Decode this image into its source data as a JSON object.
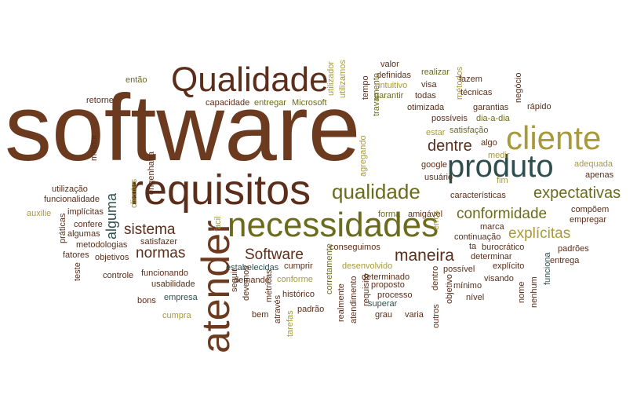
{
  "palette": {
    "brown": "#6b3a1f",
    "dark_brown": "#5a2e1a",
    "olive": "#6b6b1e",
    "khaki": "#a89a3a",
    "teal": "#2f4f4f",
    "green": "#4a5e2a"
  },
  "words": [
    {
      "text": "software",
      "color": "brown"
    },
    {
      "text": "Qualidade",
      "color": "dark_brown"
    },
    {
      "text": "requisitos",
      "color": "dark_brown"
    },
    {
      "text": "necessidades",
      "color": "olive"
    },
    {
      "text": "atender",
      "color": "brown"
    },
    {
      "text": "cliente",
      "color": "khaki"
    },
    {
      "text": "produto",
      "color": "teal"
    },
    {
      "text": "qualidade",
      "color": "olive"
    },
    {
      "text": "dentre",
      "color": "dark_brown"
    },
    {
      "text": "expectativas",
      "color": "olive"
    },
    {
      "text": "conformidade",
      "color": "olive"
    },
    {
      "text": "explícitas",
      "color": "khaki"
    },
    {
      "text": "sistema",
      "color": "dark_brown"
    },
    {
      "text": "normas",
      "color": "dark_brown"
    },
    {
      "text": "alguma",
      "color": "teal"
    },
    {
      "text": "Software",
      "color": "dark_brown"
    },
    {
      "text": "maneira",
      "color": "dark_brown"
    },
    {
      "text": "então",
      "color": "olive"
    },
    {
      "text": "retorne",
      "color": "dark_brown"
    },
    {
      "text": "capacidade",
      "color": "dark_brown"
    },
    {
      "text": "entregar",
      "color": "olive"
    },
    {
      "text": "Microsoft",
      "color": "olive"
    },
    {
      "text": "utilizamos",
      "color": "khaki"
    },
    {
      "text": "utilizador",
      "color": "khaki"
    },
    {
      "text": "tempo",
      "color": "dark_brown"
    },
    {
      "text": "valor",
      "color": "dark_brown"
    },
    {
      "text": "definidas",
      "color": "dark_brown"
    },
    {
      "text": "intuitivo",
      "color": "khaki"
    },
    {
      "text": "visa",
      "color": "dark_brown"
    },
    {
      "text": "realizar",
      "color": "olive"
    },
    {
      "text": "todas",
      "color": "dark_brown"
    },
    {
      "text": "métodos",
      "color": "khaki"
    },
    {
      "text": "fazem",
      "color": "dark_brown"
    },
    {
      "text": "técnicas",
      "color": "dark_brown"
    },
    {
      "text": "negócio",
      "color": "dark_brown"
    },
    {
      "text": "rápido",
      "color": "dark_brown"
    },
    {
      "text": "garantir",
      "color": "olive"
    },
    {
      "text": "travamento",
      "color": "olive"
    },
    {
      "text": "otimizada",
      "color": "dark_brown"
    },
    {
      "text": "garantias",
      "color": "dark_brown"
    },
    {
      "text": "possíveis",
      "color": "dark_brown"
    },
    {
      "text": "dia-a-dia",
      "color": "olive"
    },
    {
      "text": "estar",
      "color": "khaki"
    },
    {
      "text": "satisfação",
      "color": "olive"
    },
    {
      "text": "algo",
      "color": "dark_brown"
    },
    {
      "text": "medir",
      "color": "khaki"
    },
    {
      "text": "fim",
      "color": "khaki"
    },
    {
      "text": "google",
      "color": "dark_brown"
    },
    {
      "text": "usuário",
      "color": "dark_brown"
    },
    {
      "text": "agregando",
      "color": "khaki"
    },
    {
      "text": "adequada",
      "color": "khaki"
    },
    {
      "text": "apenas",
      "color": "dark_brown"
    },
    {
      "text": "características",
      "color": "dark_brown"
    },
    {
      "text": "compõem",
      "color": "dark_brown"
    },
    {
      "text": "empregar",
      "color": "dark_brown"
    },
    {
      "text": "padrões",
      "color": "dark_brown"
    },
    {
      "text": "entrega",
      "color": "dark_brown"
    },
    {
      "text": "funciona",
      "color": "teal"
    },
    {
      "text": "continuação",
      "color": "dark_brown"
    },
    {
      "text": "marca",
      "color": "dark_brown"
    },
    {
      "text": "ta",
      "color": "dark_brown"
    },
    {
      "text": "burocrático",
      "color": "dark_brown"
    },
    {
      "text": "explícito",
      "color": "dark_brown"
    },
    {
      "text": "determinar",
      "color": "dark_brown"
    },
    {
      "text": "possível",
      "color": "dark_brown"
    },
    {
      "text": "visando",
      "color": "dark_brown"
    },
    {
      "text": "mínimo",
      "color": "dark_brown"
    },
    {
      "text": "nível",
      "color": "dark_brown"
    },
    {
      "text": "nome",
      "color": "dark_brown"
    },
    {
      "text": "nenhum",
      "color": "dark_brown"
    },
    {
      "text": "forma",
      "color": "olive"
    },
    {
      "text": "amigável",
      "color": "dark_brown"
    },
    {
      "text": "erros",
      "color": "khaki"
    },
    {
      "text": "conseguimos",
      "color": "dark_brown"
    },
    {
      "text": "desenvolvido",
      "color": "khaki"
    },
    {
      "text": "determinado",
      "color": "dark_brown"
    },
    {
      "text": "proposto",
      "color": "dark_brown"
    },
    {
      "text": "processo",
      "color": "dark_brown"
    },
    {
      "text": "superar",
      "color": "teal"
    },
    {
      "text": "grau",
      "color": "dark_brown"
    },
    {
      "text": "varia",
      "color": "dark_brown"
    },
    {
      "text": "dentro",
      "color": "dark_brown"
    },
    {
      "text": "objetivo",
      "color": "dark_brown"
    },
    {
      "text": "outros",
      "color": "dark_brown"
    },
    {
      "text": "requisito",
      "color": "dark_brown"
    },
    {
      "text": "atendimento",
      "color": "dark_brown"
    },
    {
      "text": "realmente",
      "color": "dark_brown"
    },
    {
      "text": "corretamente",
      "color": "olive"
    },
    {
      "text": "conforme",
      "color": "khaki"
    },
    {
      "text": "histórico",
      "color": "dark_brown"
    },
    {
      "text": "padrão",
      "color": "dark_brown"
    },
    {
      "text": "cumprir",
      "color": "dark_brown"
    },
    {
      "text": "estabelecidas",
      "color": "teal"
    },
    {
      "text": "demande",
      "color": "dark_brown"
    },
    {
      "text": "métricas",
      "color": "dark_brown"
    },
    {
      "text": "seguir",
      "color": "dark_brown"
    },
    {
      "text": "devemos",
      "color": "dark_brown"
    },
    {
      "text": "bem",
      "color": "dark_brown"
    },
    {
      "text": "através",
      "color": "dark_brown"
    },
    {
      "text": "tarefas",
      "color": "khaki"
    },
    {
      "text": "funcionando",
      "color": "dark_brown"
    },
    {
      "text": "usabilidade",
      "color": "dark_brown"
    },
    {
      "text": "controle",
      "color": "dark_brown"
    },
    {
      "text": "bons",
      "color": "dark_brown"
    },
    {
      "text": "empresa",
      "color": "teal"
    },
    {
      "text": "cumpra",
      "color": "khaki"
    },
    {
      "text": "teste",
      "color": "dark_brown"
    },
    {
      "text": "objetivos",
      "color": "dark_brown"
    },
    {
      "text": "fatores",
      "color": "dark_brown"
    },
    {
      "text": "metodologias",
      "color": "dark_brown"
    },
    {
      "text": "algumas",
      "color": "dark_brown"
    },
    {
      "text": "práticas",
      "color": "dark_brown"
    },
    {
      "text": "confere",
      "color": "dark_brown"
    },
    {
      "text": "satisfazer",
      "color": "dark_brown"
    },
    {
      "text": "fácil",
      "color": "khaki"
    },
    {
      "text": "implícitas",
      "color": "dark_brown"
    },
    {
      "text": "auxilie",
      "color": "khaki"
    },
    {
      "text": "funcionalidade",
      "color": "dark_brown"
    },
    {
      "text": "utilização",
      "color": "dark_brown"
    },
    {
      "text": "clientes",
      "color": "khaki"
    },
    {
      "text": "engenharia",
      "color": "dark_brown"
    },
    {
      "text": "melhor",
      "color": "dark_brown"
    }
  ]
}
